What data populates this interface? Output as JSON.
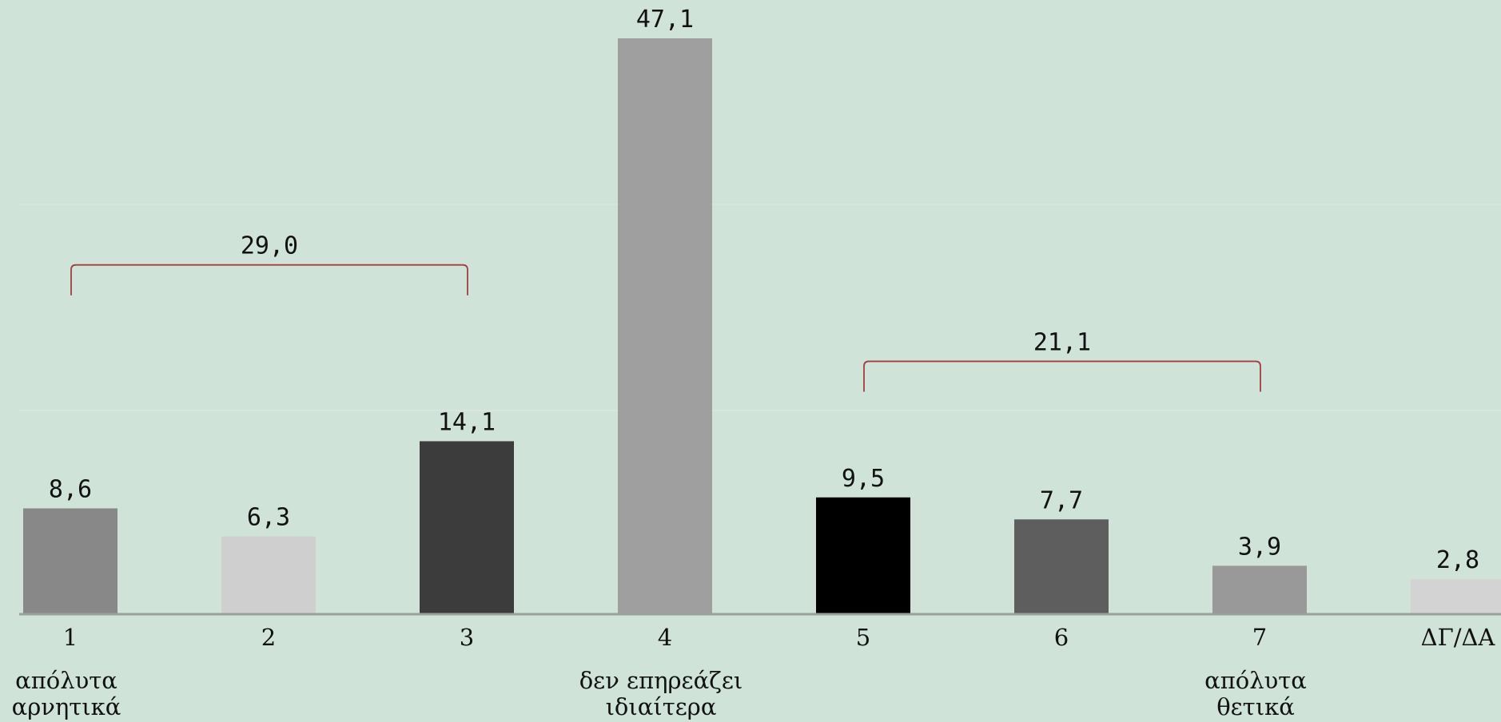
{
  "chart_data": {
    "type": "bar",
    "categories": [
      "1",
      "2",
      "3",
      "4",
      "5",
      "6",
      "7",
      "ΔΓ/ΔΑ"
    ],
    "values": [
      8.6,
      6.3,
      14.1,
      47.1,
      9.5,
      7.7,
      3.9,
      2.8
    ],
    "value_labels": [
      "8,6",
      "6,3",
      "14,1",
      "47,1",
      "9,5",
      "7,7",
      "3,9",
      "2,8"
    ],
    "colors": [
      "#888888",
      "#cfcfcf",
      "#3c3c3c",
      "#9f9f9f",
      "#000000",
      "#5e5e5e",
      "#999999",
      "#d3d3d3"
    ],
    "ylim": [
      0,
      47.1
    ],
    "grid": true,
    "axis_anchors": [
      {
        "category_index": 0,
        "lines": [
          "απόλυτα",
          "αρνητικά"
        ]
      },
      {
        "category_index": 3,
        "lines": [
          "δεν επηρεάζει",
          "ιδιαίτερα"
        ]
      },
      {
        "category_index": 6,
        "lines": [
          "απόλυτα",
          "θετικά"
        ]
      }
    ],
    "group_brackets": [
      {
        "from": 0,
        "to": 2,
        "value": 29.0,
        "label": "29,0"
      },
      {
        "from": 4,
        "to": 6,
        "value": 21.1,
        "label": "21,1"
      }
    ],
    "bracket_color": "#a04040",
    "axis_color": "#9aa09c",
    "grid_color": "#dbe8e1"
  }
}
